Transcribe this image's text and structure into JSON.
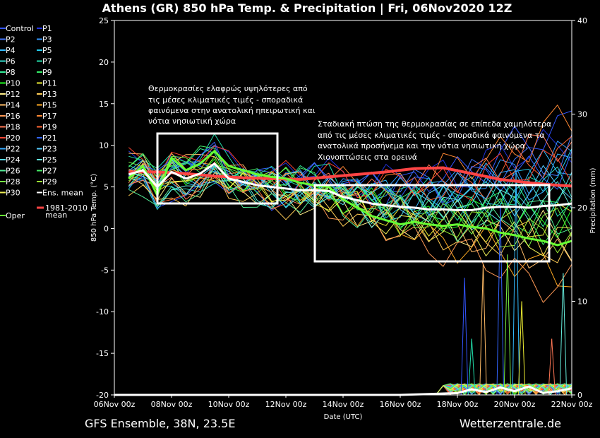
{
  "header": {
    "title": "Athens  (GR)  850 hPa Temp. & Precipitation | Fri, 06Nov2020 12Z"
  },
  "footer": {
    "left": "GFS Ensemble, 38N, 23.5E",
    "right": "Wetterzentrale.de"
  },
  "annotations": [
    [
      "Θερμοκρασίες ελαφρώς υψηλότερες από",
      "τις μέσες κλιματικές τιμές - σποραδικά",
      "φαινόμενα στην ανατολική ηπειρωτική και",
      "νότια νησιωτική χώρα"
    ],
    [
      "Σταδιακή πτώση της θερμοκρασίας σε επίπεδα χαμηλότερα",
      "από τις μέσες κλιματικές τιμές - σποραδικά φαινόμενα τα",
      "ανατολικά προσήνεμα και την νότια νησιωτική χώρα.",
      "Χιονοπτώσεις στα ορεινά"
    ]
  ],
  "legend": {
    "members": [
      {
        "name": "Control",
        "color": "#3355ff"
      },
      {
        "name": "P1",
        "color": "#2233dd"
      },
      {
        "name": "P2",
        "color": "#4477ff"
      },
      {
        "name": "P3",
        "color": "#3399ff"
      },
      {
        "name": "P4",
        "color": "#33bbff"
      },
      {
        "name": "P5",
        "color": "#22ccee"
      },
      {
        "name": "P6",
        "color": "#33ddcc"
      },
      {
        "name": "P7",
        "color": "#22ddaa"
      },
      {
        "name": "P8",
        "color": "#33ee99"
      },
      {
        "name": "P9",
        "color": "#33ee66"
      },
      {
        "name": "P10",
        "color": "#22ff22"
      },
      {
        "name": "P11",
        "color": "#eeee33"
      },
      {
        "name": "P12",
        "color": "#ffee88"
      },
      {
        "name": "P13",
        "color": "#ffcc55"
      },
      {
        "name": "P14",
        "color": "#ffbb66"
      },
      {
        "name": "P15",
        "color": "#ffaa22"
      },
      {
        "name": "P16",
        "color": "#ff9955"
      },
      {
        "name": "P17",
        "color": "#ff8833"
      },
      {
        "name": "P18",
        "color": "#ff7755"
      },
      {
        "name": "P19",
        "color": "#ff6633"
      },
      {
        "name": "P20",
        "color": "#ff4433"
      },
      {
        "name": "P21",
        "color": "#3366ff"
      },
      {
        "name": "P22",
        "color": "#33aaff"
      },
      {
        "name": "P23",
        "color": "#55ccff"
      },
      {
        "name": "P24",
        "color": "#55ddee"
      },
      {
        "name": "P25",
        "color": "#66eedd"
      },
      {
        "name": "P26",
        "color": "#55ee99"
      },
      {
        "name": "P27",
        "color": "#44ee66"
      },
      {
        "name": "P28",
        "color": "#77ee44"
      },
      {
        "name": "P29",
        "color": "#99ee33"
      },
      {
        "name": "P30",
        "color": "#eeee55"
      },
      {
        "name": "Ens. mean",
        "color": "#ffffff"
      }
    ],
    "oper": {
      "name": "Oper",
      "color": "#66ff33"
    },
    "climate": {
      "name_lines": [
        "1981-2010",
        "mean"
      ],
      "color": "#ff4444"
    }
  },
  "chart_data": {
    "type": "line",
    "title": "Athens  (GR)  850 hPa Temp. & Precipitation | Fri, 06Nov2020 12Z",
    "xlabel": "Date (UTC)",
    "ylabel": "850 hPa Temp. (°C)",
    "ylabel_right": "Precipitation (mm)",
    "x_ticks": [
      "06Nov 00z",
      "08Nov 00z",
      "10Nov 00z",
      "12Nov 00z",
      "14Nov 00z",
      "16Nov 00z",
      "18Nov 00z",
      "20Nov 00z",
      "22Nov 00z"
    ],
    "ylim": [
      -20,
      25
    ],
    "y_ticks": [
      25,
      20,
      15,
      10,
      5,
      0,
      -5,
      -10,
      -15,
      -20
    ],
    "ylim_right": [
      0,
      40
    ],
    "y_ticks_right": [
      40,
      30,
      20,
      10,
      0
    ],
    "grid": false,
    "x_range_days": [
      0,
      16
    ],
    "temp_start_day": 0.5,
    "temp_step_days": 0.25,
    "climate_mean": {
      "name": "1981-2010 mean",
      "x": [
        0.5,
        1.5,
        2.5,
        3.5,
        4.5,
        5.5,
        6.5,
        7.5,
        8.5,
        9.5,
        10.5,
        11.5,
        12.5,
        13.5,
        14.5,
        15.5,
        16.0
      ],
      "values": [
        6.8,
        6.8,
        6.6,
        6.3,
        6.1,
        6.0,
        5.9,
        6.2,
        6.5,
        6.8,
        7.2,
        7.3,
        6.6,
        5.9,
        5.5,
        5.2,
        5.1
      ]
    },
    "ens_mean": {
      "name": "Ens. mean",
      "x": [
        0.5,
        1.0,
        1.5,
        2.0,
        2.5,
        3.0,
        3.5,
        4.0,
        4.5,
        5.0,
        5.5,
        6.0,
        6.5,
        7.0,
        7.5,
        8.0,
        8.5,
        9.0,
        9.5,
        10.0,
        10.5,
        11.0,
        11.5,
        12.0,
        12.5,
        13.0,
        13.5,
        14.0,
        14.5,
        15.0,
        15.5,
        16.0
      ],
      "values": [
        6.5,
        7.0,
        5.0,
        6.8,
        6.0,
        6.6,
        7.8,
        6.0,
        5.6,
        5.2,
        5.0,
        4.8,
        4.6,
        4.6,
        4.5,
        3.8,
        3.4,
        3.0,
        2.8,
        2.6,
        2.5,
        2.3,
        2.3,
        2.2,
        2.2,
        2.5,
        2.6,
        2.6,
        2.5,
        2.7,
        2.8,
        3.0
      ]
    },
    "oper": {
      "name": "Oper",
      "x": [
        0.5,
        1.0,
        1.5,
        2.0,
        2.5,
        3.0,
        3.5,
        4.0,
        4.5,
        5.0,
        5.5,
        6.0,
        6.5,
        7.0,
        7.5,
        8.0,
        8.5,
        9.0,
        9.5,
        10.0,
        10.5,
        11.0,
        11.5,
        12.0,
        12.5,
        13.0,
        13.5,
        14.0,
        14.5,
        15.0,
        15.5,
        16.0
      ],
      "values": [
        6.0,
        7.5,
        4.0,
        8.5,
        7.0,
        7.8,
        9.3,
        7.5,
        7.0,
        6.5,
        6.2,
        6.0,
        5.5,
        5.2,
        5.0,
        3.5,
        2.5,
        1.5,
        1.0,
        0.5,
        0.8,
        0.5,
        0.3,
        0.5,
        0.2,
        0.0,
        -0.5,
        -0.8,
        -1.2,
        -1.5,
        -2.0,
        -1.5
      ]
    },
    "precip_mean": {
      "name": "Ens. mean precipitation (mm)",
      "x": [
        0,
        2,
        4,
        6,
        8,
        10,
        11,
        12,
        12.5,
        13,
        13.5,
        14,
        14.5,
        15,
        15.5,
        16
      ],
      "values": [
        0,
        0,
        0,
        0,
        0,
        0,
        0.1,
        0.2,
        0.6,
        0.3,
        0.8,
        0.4,
        0.9,
        0.2,
        0.4,
        0.7
      ]
    },
    "precip_spikes": [
      {
        "x": 12.25,
        "values": [
          0,
          12.5
        ]
      },
      {
        "x": 12.5,
        "values": [
          0,
          6.0
        ]
      },
      {
        "x": 12.9,
        "values": [
          0,
          14.0
        ]
      },
      {
        "x": 13.5,
        "values": [
          0,
          20.0
        ]
      },
      {
        "x": 13.75,
        "values": [
          0,
          15.0
        ]
      },
      {
        "x": 14.05,
        "values": [
          0,
          24.0
        ]
      },
      {
        "x": 14.25,
        "values": [
          0,
          10.0
        ]
      },
      {
        "x": 15.3,
        "values": [
          0,
          6.0
        ]
      },
      {
        "x": 15.7,
        "values": [
          0,
          13.0
        ]
      }
    ],
    "spread_end_values": [
      13.0,
      11.0,
      9.5,
      8.5,
      8.0,
      7.0,
      5.5,
      4.5,
      3.5,
      2.0,
      1.0,
      0.5,
      -1.0,
      -2.0,
      -3.5,
      -5.5,
      -7.5
    ]
  }
}
